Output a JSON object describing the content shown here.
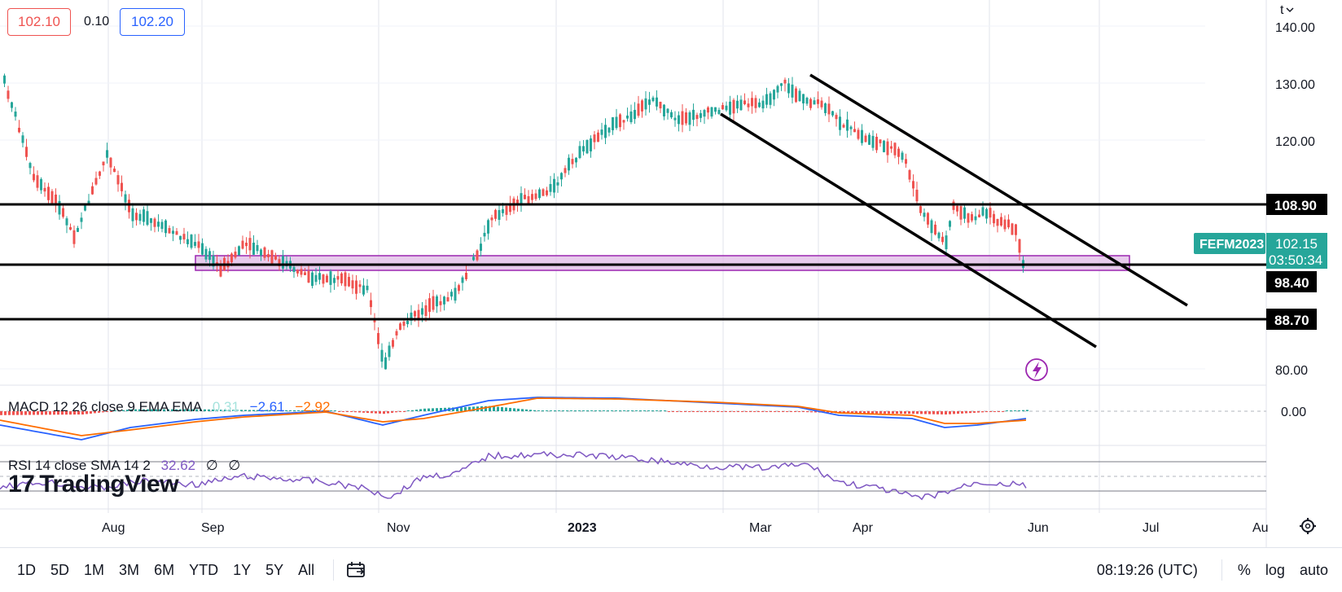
{
  "quote": {
    "bid": "102.10",
    "spread": "0.10",
    "ask": "102.20"
  },
  "symbol": "FEFM2023",
  "price": {
    "last": "102.15",
    "countdown": "03:50:34"
  },
  "levels": [
    {
      "label": "108.90",
      "value": 108.9
    },
    {
      "label": "98.40",
      "value": 98.4
    },
    {
      "label": "88.70",
      "value": 88.7
    }
  ],
  "price_axis": {
    "ticks": [
      "140.00",
      "130.00",
      "120.00",
      "80.00"
    ],
    "currency_label": "t"
  },
  "macd": {
    "label": "MACD 12 26 close 9 EMA EMA",
    "histogram": "0.31",
    "macd": "−2.61",
    "signal": "−2.92",
    "axis_label": "0.00"
  },
  "rsi": {
    "label": "RSI 14 close SMA 14 2",
    "value": "32.62",
    "extra1": "∅",
    "extra2": "∅"
  },
  "time_axis": {
    "labels": [
      "Aug",
      "Sep",
      "Nov",
      "2023",
      "Mar",
      "Apr",
      "Jun",
      "Jul",
      "Au"
    ]
  },
  "branding": {
    "name": "TradingView",
    "mark": "17"
  },
  "toolbar": {
    "ranges": [
      "1D",
      "5D",
      "1M",
      "3M",
      "6M",
      "YTD",
      "1Y",
      "5Y",
      "All"
    ],
    "clock": "08:19:26 (UTC)",
    "percent": "%",
    "log": "log",
    "auto": "auto"
  },
  "colors": {
    "up": "#26a69a",
    "down": "#ef5350",
    "zone": "#e1bee7",
    "zone_border": "#9c27b0",
    "macd_line": "#2962ff",
    "signal_line": "#ff6d00",
    "rsi_line": "#7e57c2",
    "symbol_tag": "#26a69a"
  },
  "chart_data": {
    "type": "candlestick",
    "y_axis_ticks": [
      140,
      130,
      120,
      80
    ],
    "price_levels": [
      108.9,
      98.4,
      88.7
    ],
    "last_price": 102.15,
    "highlight_zone": [
      97.5,
      100.0
    ],
    "x_axis_labels": [
      "Aug",
      "Sep",
      "Nov",
      "2023",
      "Mar",
      "Apr",
      "Jun",
      "Jul",
      "Au"
    ]
  }
}
